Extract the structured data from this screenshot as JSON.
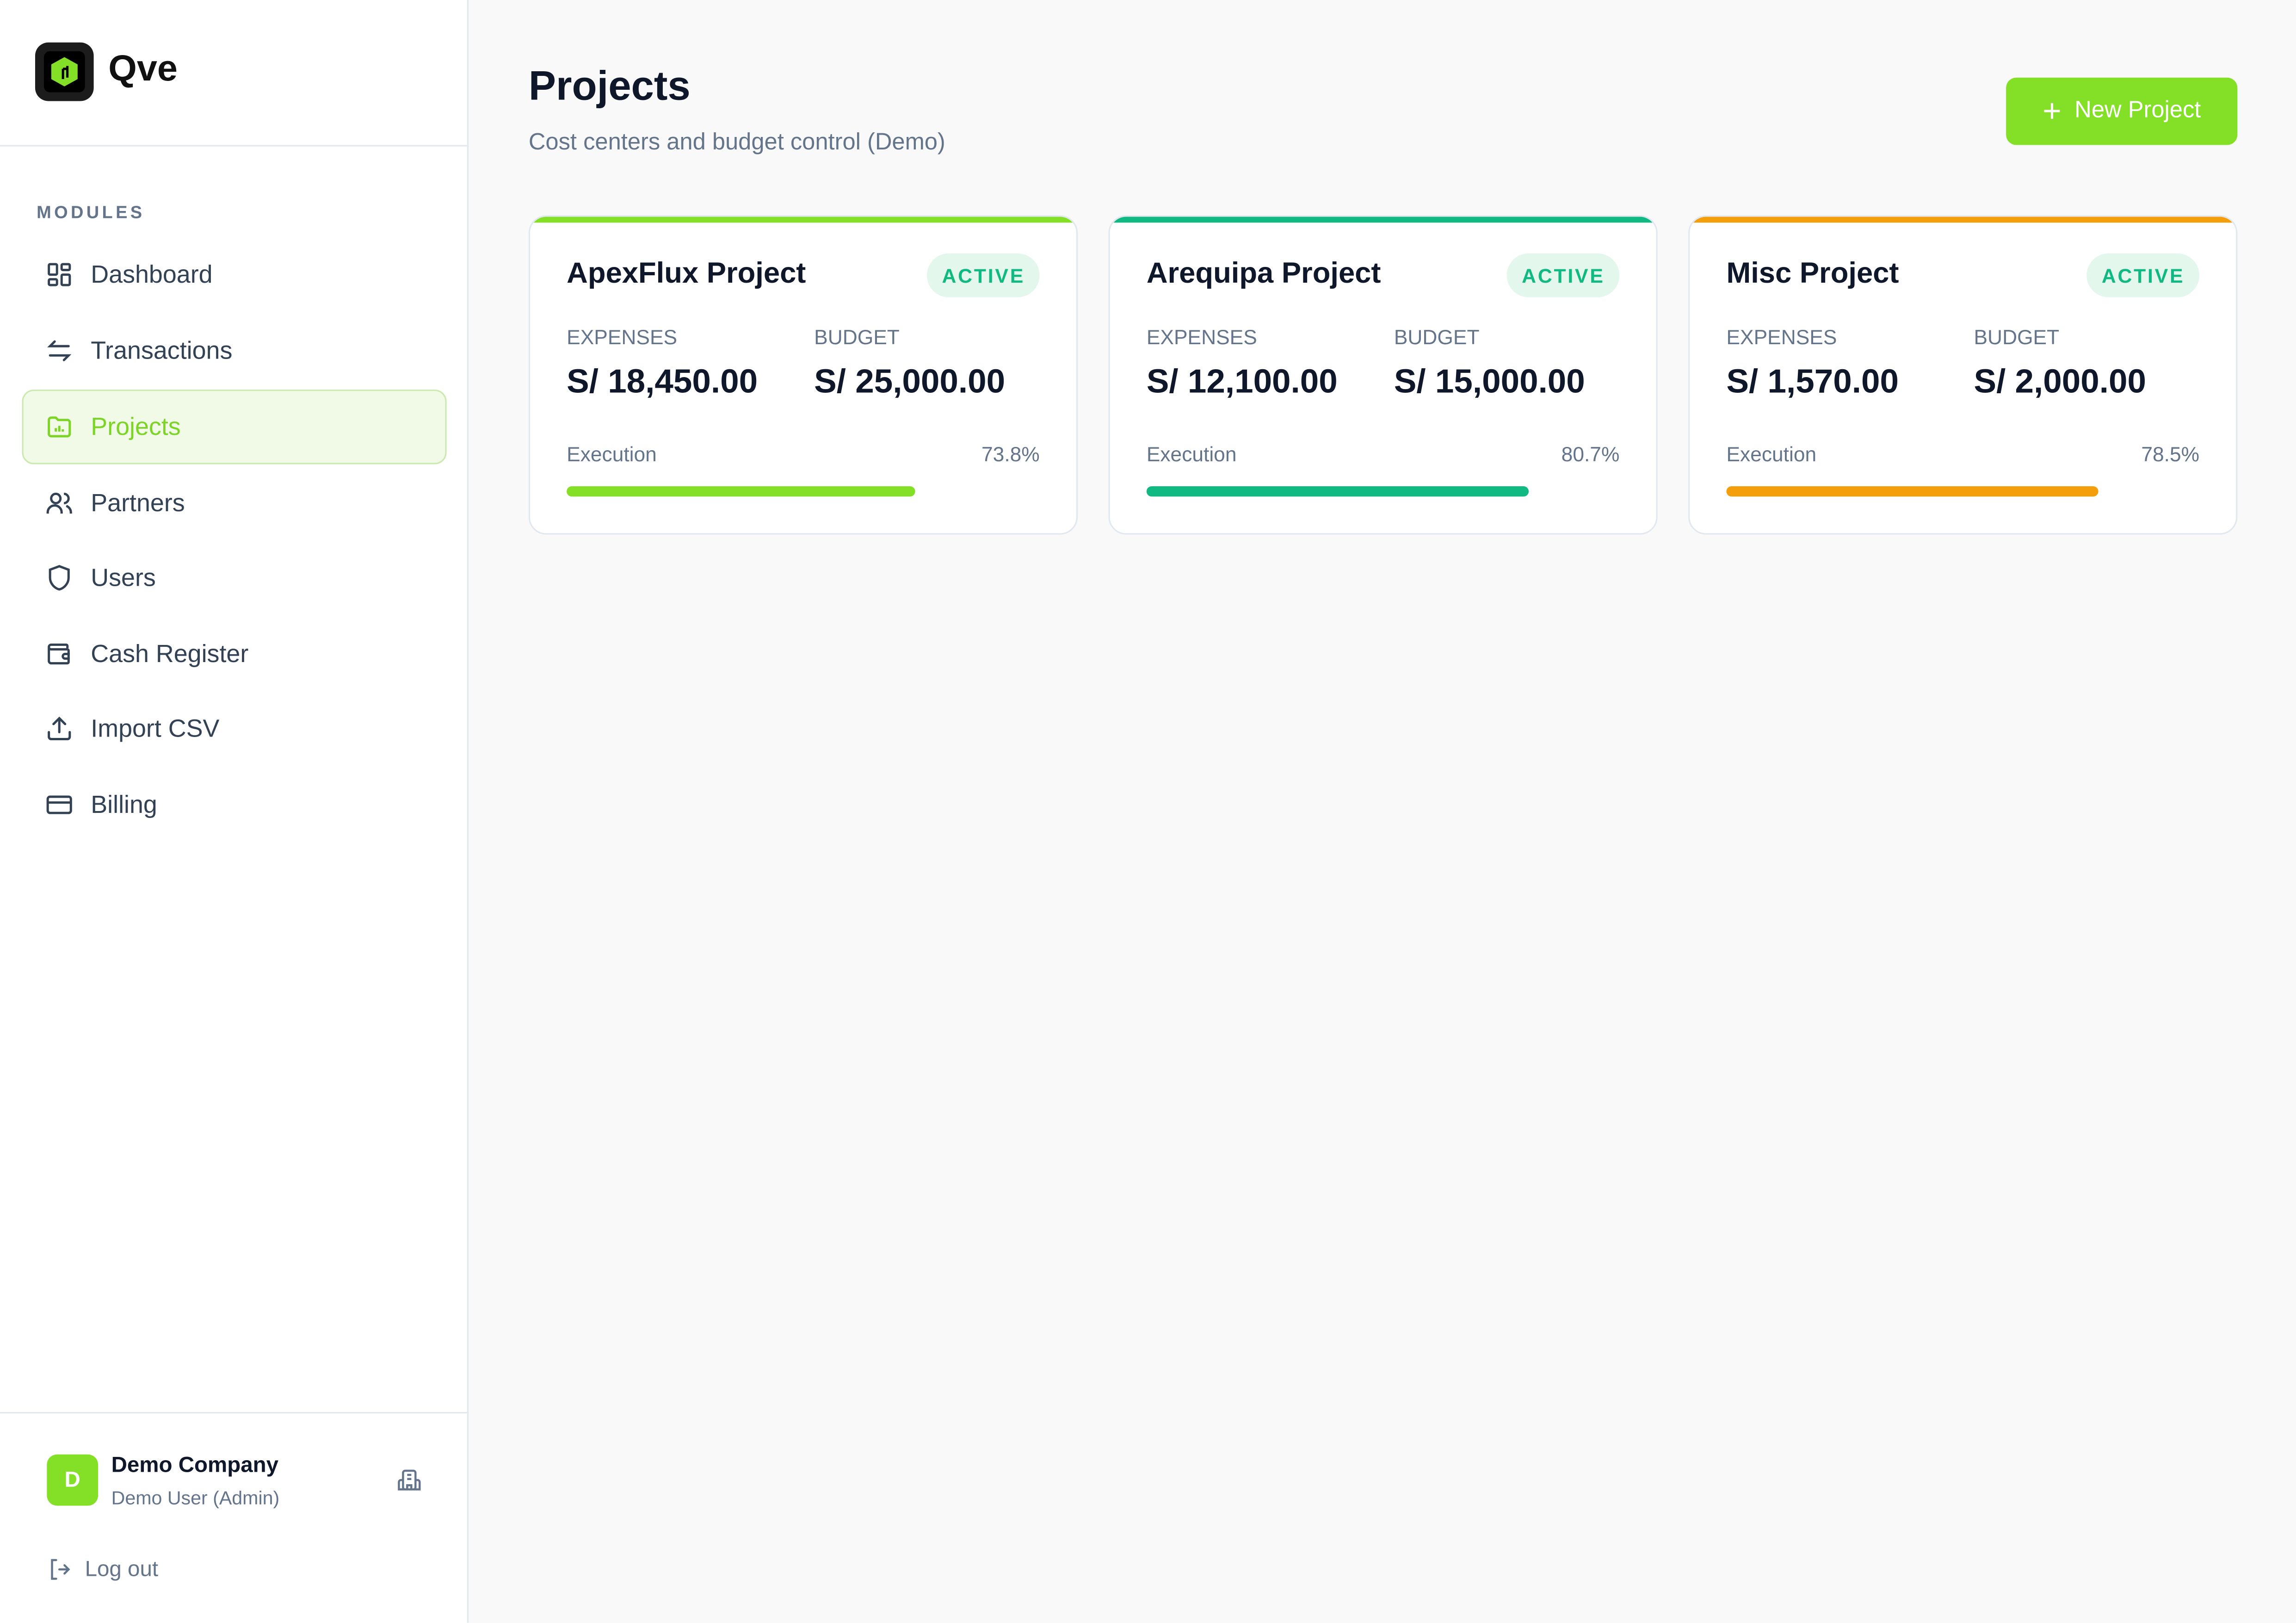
{
  "app": {
    "name": "Qve"
  },
  "sidebar": {
    "section_label": "MODULES",
    "items": [
      {
        "label": "Dashboard",
        "icon": "dashboard-icon"
      },
      {
        "label": "Transactions",
        "icon": "arrows-exchange-icon"
      },
      {
        "label": "Projects",
        "icon": "folder-chart-icon",
        "active": true
      },
      {
        "label": "Partners",
        "icon": "users-icon"
      },
      {
        "label": "Users",
        "icon": "shield-icon"
      },
      {
        "label": "Cash Register",
        "icon": "wallet-icon"
      },
      {
        "label": "Import CSV",
        "icon": "upload-icon"
      },
      {
        "label": "Billing",
        "icon": "credit-card-icon"
      }
    ],
    "account": {
      "initial": "D",
      "company": "Demo Company",
      "user": "Demo User (Admin)"
    },
    "logout_label": "Log out"
  },
  "header": {
    "title": "Projects",
    "subtitle": "Cost centers and budget control (Demo)",
    "new_button": "New Project"
  },
  "projects": [
    {
      "name": "ApexFlux Project",
      "status": "ACTIVE",
      "expenses_label": "EXPENSES",
      "expenses": "S/ 18,450.00",
      "budget_label": "BUDGET",
      "budget": "S/ 25,000.00",
      "execution_label": "Execution",
      "execution": "73.8%",
      "execution_value": 73.8,
      "color": "#84e026"
    },
    {
      "name": "Arequipa Project",
      "status": "ACTIVE",
      "expenses_label": "EXPENSES",
      "expenses": "S/ 12,100.00",
      "budget_label": "BUDGET",
      "budget": "S/ 15,000.00",
      "execution_label": "Execution",
      "execution": "80.7%",
      "execution_value": 80.7,
      "color": "#10b981"
    },
    {
      "name": "Misc Project",
      "status": "ACTIVE",
      "expenses_label": "EXPENSES",
      "expenses": "S/ 1,570.00",
      "budget_label": "BUDGET",
      "budget": "S/ 2,000.00",
      "execution_label": "Execution",
      "execution": "78.5%",
      "execution_value": 78.5,
      "color": "#f59e0b"
    }
  ]
}
